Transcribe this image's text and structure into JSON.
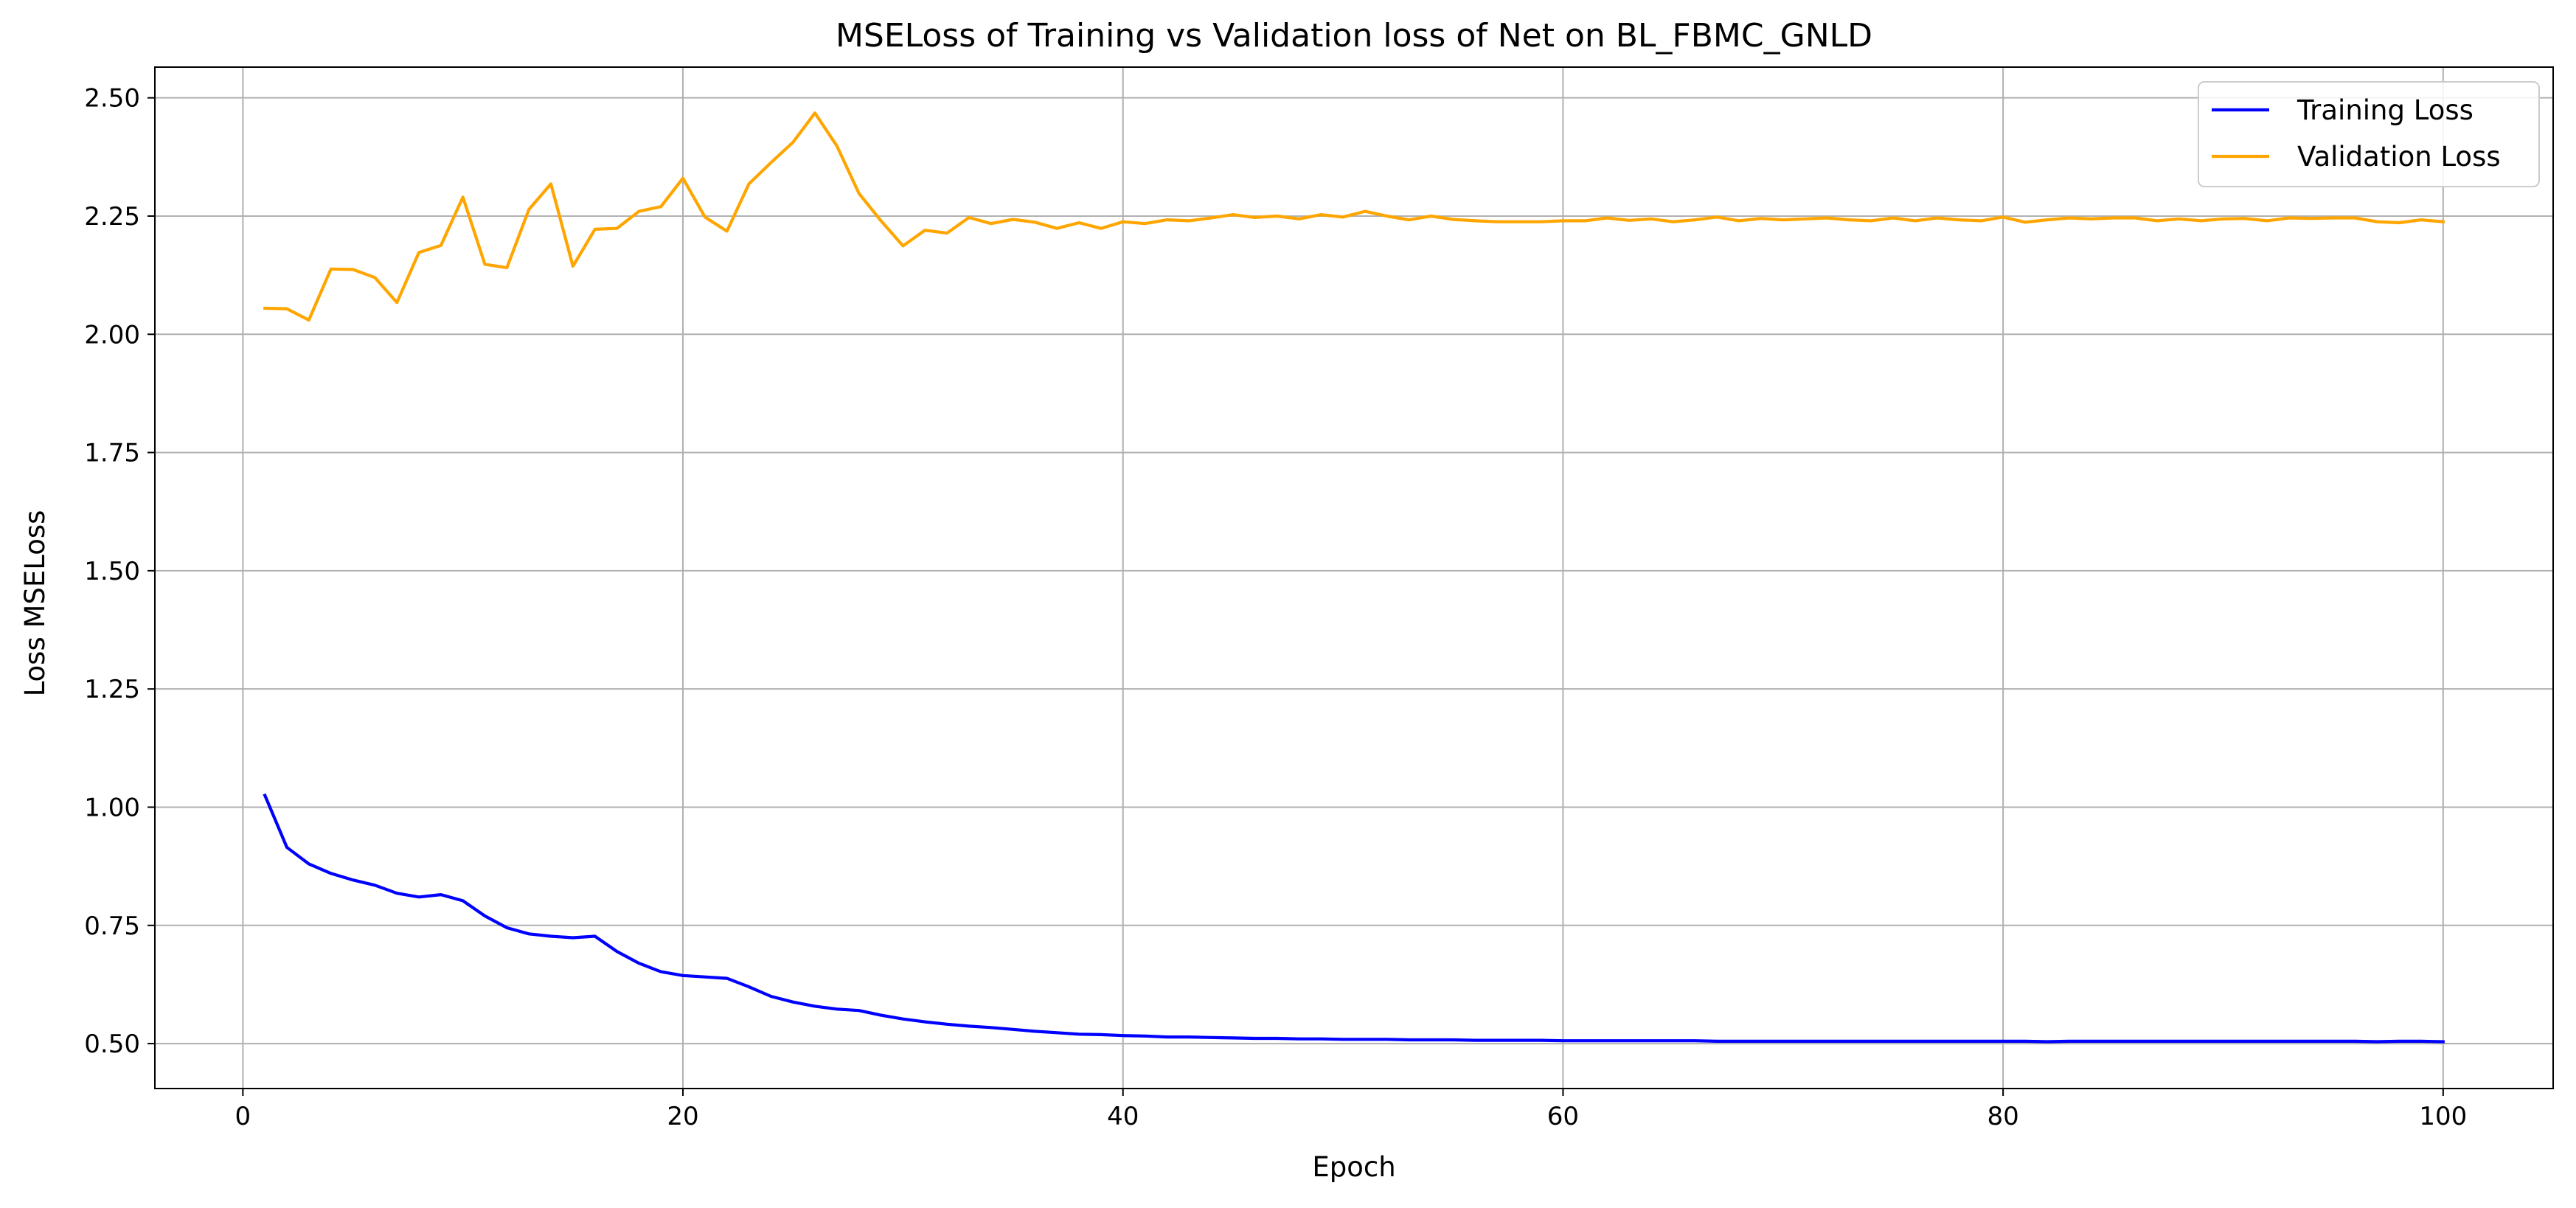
{
  "chart_data": {
    "type": "line",
    "title": "MSELoss of Training vs Validation loss of Net on BL_FBMC_GNLD",
    "xlabel": "Epoch",
    "ylabel": "Loss MSELoss",
    "xlim": [
      -4,
      105
    ],
    "ylim": [
      0.405,
      2.565
    ],
    "xticks": [
      0,
      20,
      40,
      60,
      80,
      100
    ],
    "xtick_labels": [
      "0",
      "20",
      "40",
      "60",
      "80",
      "100"
    ],
    "yticks": [
      0.5,
      0.75,
      1.0,
      1.25,
      1.5,
      1.75,
      2.0,
      2.25,
      2.5
    ],
    "ytick_labels": [
      "0.50",
      "0.75",
      "1.00",
      "1.25",
      "1.50",
      "1.75",
      "2.00",
      "2.25",
      "2.50"
    ],
    "grid": true,
    "legend_position": "top-right",
    "x": [
      1,
      2,
      3,
      4,
      5,
      6,
      7,
      8,
      9,
      10,
      11,
      12,
      13,
      14,
      15,
      16,
      17,
      18,
      19,
      20,
      21,
      22,
      23,
      24,
      25,
      26,
      27,
      28,
      29,
      30,
      31,
      32,
      33,
      34,
      35,
      36,
      37,
      38,
      39,
      40,
      41,
      42,
      43,
      44,
      45,
      46,
      47,
      48,
      49,
      50,
      51,
      52,
      53,
      54,
      55,
      56,
      57,
      58,
      59,
      60,
      61,
      62,
      63,
      64,
      65,
      66,
      67,
      68,
      69,
      70,
      71,
      72,
      73,
      74,
      75,
      76,
      77,
      78,
      79,
      80,
      81,
      82,
      83,
      84,
      85,
      86,
      87,
      88,
      89,
      90,
      91,
      92,
      93,
      94,
      95,
      96,
      97,
      98,
      99,
      100
    ],
    "series": [
      {
        "name": "Training Loss",
        "color": "#0000ff",
        "values": [
          1.025,
          0.915,
          0.88,
          0.86,
          0.846,
          0.835,
          0.818,
          0.81,
          0.815,
          0.802,
          0.77,
          0.745,
          0.732,
          0.727,
          0.724,
          0.727,
          0.695,
          0.67,
          0.652,
          0.644,
          0.641,
          0.638,
          0.62,
          0.6,
          0.588,
          0.579,
          0.573,
          0.57,
          0.56,
          0.552,
          0.546,
          0.541,
          0.537,
          0.534,
          0.53,
          0.526,
          0.523,
          0.52,
          0.519,
          0.517,
          0.516,
          0.514,
          0.514,
          0.513,
          0.512,
          0.511,
          0.511,
          0.51,
          0.51,
          0.509,
          0.509,
          0.509,
          0.508,
          0.508,
          0.508,
          0.507,
          0.507,
          0.507,
          0.507,
          0.506,
          0.506,
          0.506,
          0.506,
          0.506,
          0.506,
          0.506,
          0.505,
          0.505,
          0.505,
          0.505,
          0.505,
          0.505,
          0.505,
          0.505,
          0.505,
          0.505,
          0.505,
          0.505,
          0.505,
          0.505,
          0.505,
          0.504,
          0.505,
          0.505,
          0.505,
          0.505,
          0.505,
          0.505,
          0.505,
          0.505,
          0.505,
          0.505,
          0.505,
          0.505,
          0.505,
          0.505,
          0.504,
          0.505,
          0.505,
          0.504
        ]
      },
      {
        "name": "Validation Loss",
        "color": "#ffa500",
        "values": [
          2.055,
          2.054,
          2.03,
          2.138,
          2.137,
          2.12,
          2.067,
          2.173,
          2.188,
          2.29,
          2.148,
          2.141,
          2.264,
          2.318,
          2.144,
          2.222,
          2.224,
          2.26,
          2.27,
          2.33,
          2.248,
          2.218,
          2.318,
          2.363,
          2.406,
          2.468,
          2.398,
          2.298,
          2.24,
          2.187,
          2.22,
          2.214,
          2.247,
          2.234,
          2.243,
          2.237,
          2.224,
          2.236,
          2.224,
          2.238,
          2.234,
          2.242,
          2.24,
          2.246,
          2.253,
          2.247,
          2.25,
          2.244,
          2.253,
          2.248,
          2.26,
          2.25,
          2.242,
          2.25,
          2.243,
          2.24,
          2.238,
          2.238,
          2.238,
          2.24,
          2.24,
          2.246,
          2.241,
          2.244,
          2.238,
          2.242,
          2.248,
          2.24,
          2.245,
          2.242,
          2.244,
          2.246,
          2.242,
          2.24,
          2.246,
          2.24,
          2.246,
          2.242,
          2.24,
          2.248,
          2.237,
          2.242,
          2.246,
          2.244,
          2.246,
          2.246,
          2.24,
          2.244,
          2.24,
          2.244,
          2.245,
          2.24,
          2.246,
          2.245,
          2.246,
          2.246,
          2.238,
          2.236,
          2.242,
          2.238
        ]
      }
    ]
  }
}
